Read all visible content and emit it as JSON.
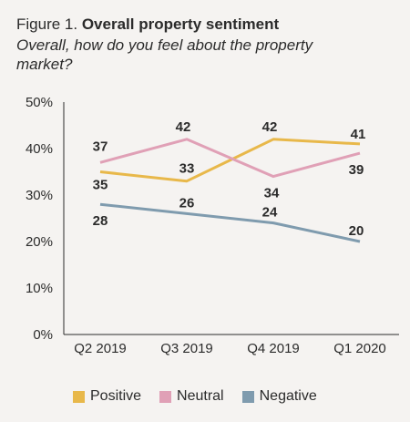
{
  "figure": {
    "title_prefix": "Figure 1.",
    "title_bold": "Overall property sentiment",
    "subtitle": "Overall, how do you feel about the property market?"
  },
  "chart_data": {
    "type": "line",
    "categories": [
      "Q2 2019",
      "Q3 2019",
      "Q4 2019",
      "Q1 2020"
    ],
    "series": [
      {
        "name": "Positive",
        "values": [
          35,
          33,
          42,
          41
        ],
        "color": "#e8b84a"
      },
      {
        "name": "Neutral",
        "values": [
          37,
          42,
          34,
          39
        ],
        "color": "#e0a0b6"
      },
      {
        "name": "Negative",
        "values": [
          28,
          26,
          24,
          20
        ],
        "color": "#7f9bae"
      }
    ],
    "ylim": [
      0,
      50
    ],
    "yticks": [
      "0%",
      "10%",
      "20%",
      "30%",
      "40%",
      "50%"
    ],
    "grid": false,
    "legend_position": "bottom"
  }
}
